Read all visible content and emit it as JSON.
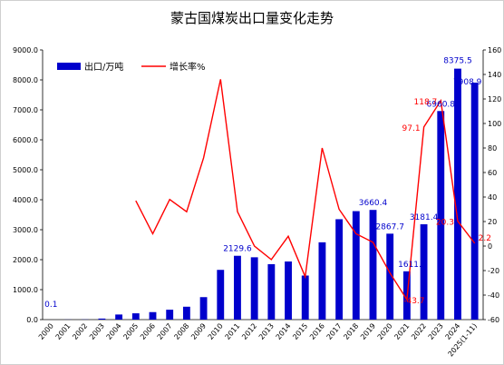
{
  "chart_data": {
    "type": "bar",
    "title": "蒙古国煤炭出口量变化走势",
    "categories": [
      "2000",
      "2001",
      "2002",
      "2003",
      "2004",
      "2005",
      "2006",
      "2007",
      "2008",
      "2009",
      "2010",
      "2011",
      "2012",
      "2013",
      "2014",
      "2015",
      "2016",
      "2017",
      "2018",
      "2019",
      "2020",
      "2021",
      "2022",
      "2023",
      "2024",
      "2025(1-11)"
    ],
    "series": [
      {
        "name": "出口/万吨",
        "type": "bar",
        "axis": "left",
        "color": "#0000cc",
        "values": [
          0.1,
          3,
          5,
          35,
          170,
          210,
          250,
          330,
          430,
          750,
          1660,
          2129.6,
          2080,
          1850,
          1940,
          1470,
          2580,
          3350,
          3620,
          3660.4,
          2867.7,
          1611.8,
          3181.4,
          6960.8,
          8375.5,
          7908.9
        ]
      },
      {
        "name": "增长率%",
        "type": "line",
        "axis": "right",
        "color": "#ff0000",
        "values": [
          null,
          null,
          null,
          null,
          null,
          37,
          10,
          38,
          28,
          72,
          136,
          28,
          0,
          -11,
          8,
          -25,
          80,
          30,
          10,
          3,
          -22,
          -43.7,
          97.1,
          118.7,
          20.3,
          2.2
        ]
      }
    ],
    "bar_labels": [
      {
        "index": 0,
        "text": "0.1"
      },
      {
        "index": 11,
        "text": "2129.6"
      },
      {
        "index": 19,
        "text": "3660.4"
      },
      {
        "index": 20,
        "text": "2867.7"
      },
      {
        "index": 21,
        "text": "1611.8"
      },
      {
        "index": 22,
        "text": "3181.4"
      },
      {
        "index": 23,
        "text": "6960.8"
      },
      {
        "index": 24,
        "text": "8375.5"
      },
      {
        "index": 25,
        "text": "7908.9"
      }
    ],
    "growth_labels": [
      {
        "index": 21,
        "text": "-43.7"
      },
      {
        "index": 22,
        "text": "97.1"
      },
      {
        "index": 23,
        "text": "118.7"
      },
      {
        "index": 24,
        "text": "20.3"
      },
      {
        "index": 25,
        "text": "2.2"
      }
    ],
    "ylim_left": [
      0,
      9000
    ],
    "yticks_left": [
      "0.0",
      "1000.0",
      "2000.0",
      "3000.0",
      "4000.0",
      "5000.0",
      "6000.0",
      "7000.0",
      "8000.0",
      "9000.0"
    ],
    "ylim_right": [
      -60,
      160
    ],
    "yticks_right": [
      "-60",
      "-40",
      "-20",
      "0",
      "20",
      "40",
      "60",
      "80",
      "100",
      "120",
      "140",
      "160"
    ],
    "legend": {
      "position": "top-left",
      "bar_label": "出口/万吨",
      "line_label": "增长率%"
    },
    "grid": false
  }
}
